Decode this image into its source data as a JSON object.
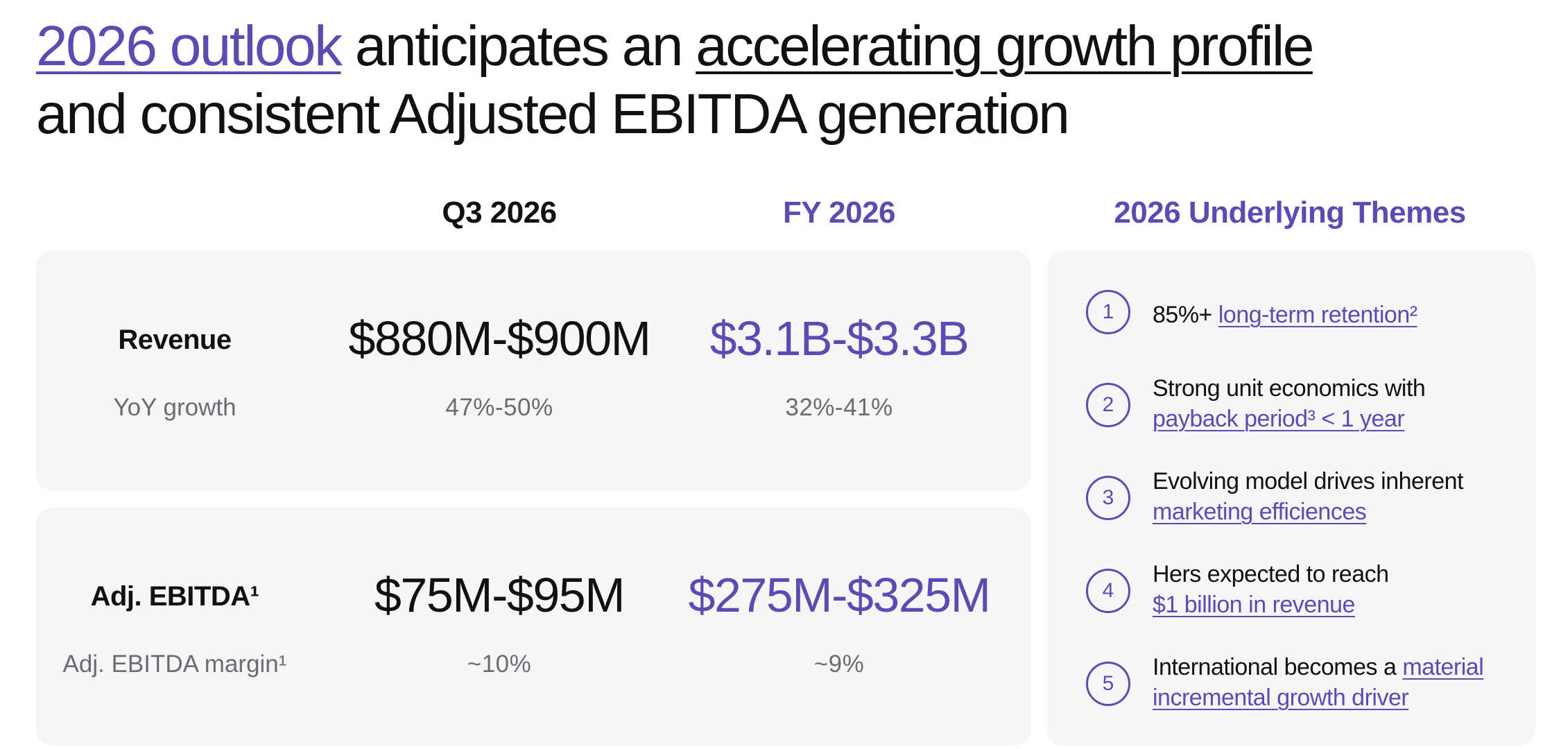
{
  "headline": {
    "part1": "2026 outlook",
    "part2": " anticipates an ",
    "part3": "accelerating growth profile ",
    "part4": "and consistent Adjusted EBITDA generation"
  },
  "columns": {
    "q3": "Q3 2026",
    "fy": "FY 2026",
    "themes": "2026 Underlying Themes"
  },
  "revenue": {
    "label": "Revenue",
    "sub_label": "YoY growth",
    "q3_value": "$880M-$900M",
    "fy_value": "$3.1B-$3.3B",
    "q3_growth": "47%-50%",
    "fy_growth": "32%-41%"
  },
  "ebitda": {
    "label": "Adj. EBITDA¹",
    "sub_label": "Adj. EBITDA margin¹",
    "q3_value": "$75M-$95M",
    "fy_value": "$275M-$325M",
    "q3_margin": "~10%",
    "fy_margin": "~9%"
  },
  "themes": [
    {
      "num": "1",
      "text": "85%+ ",
      "link": "long-term retention²",
      "text2": ""
    },
    {
      "num": "2",
      "text": "Strong unit economics with ",
      "link": "payback period³ < 1 year",
      "text2": ""
    },
    {
      "num": "3",
      "text": "Evolving model drives inherent ",
      "link": "marketing efficiences",
      "text2": ""
    },
    {
      "num": "4",
      "text": "Hers expected to reach ",
      "link": "$1 billion in revenue",
      "text2": ""
    },
    {
      "num": "5",
      "text": "International becomes a ",
      "link": "material incremental growth driver",
      "text2": ""
    }
  ],
  "colors": {
    "accent": "#5b4cb3",
    "card_bg": "#f6f6f7",
    "muted": "#6b6b72"
  }
}
